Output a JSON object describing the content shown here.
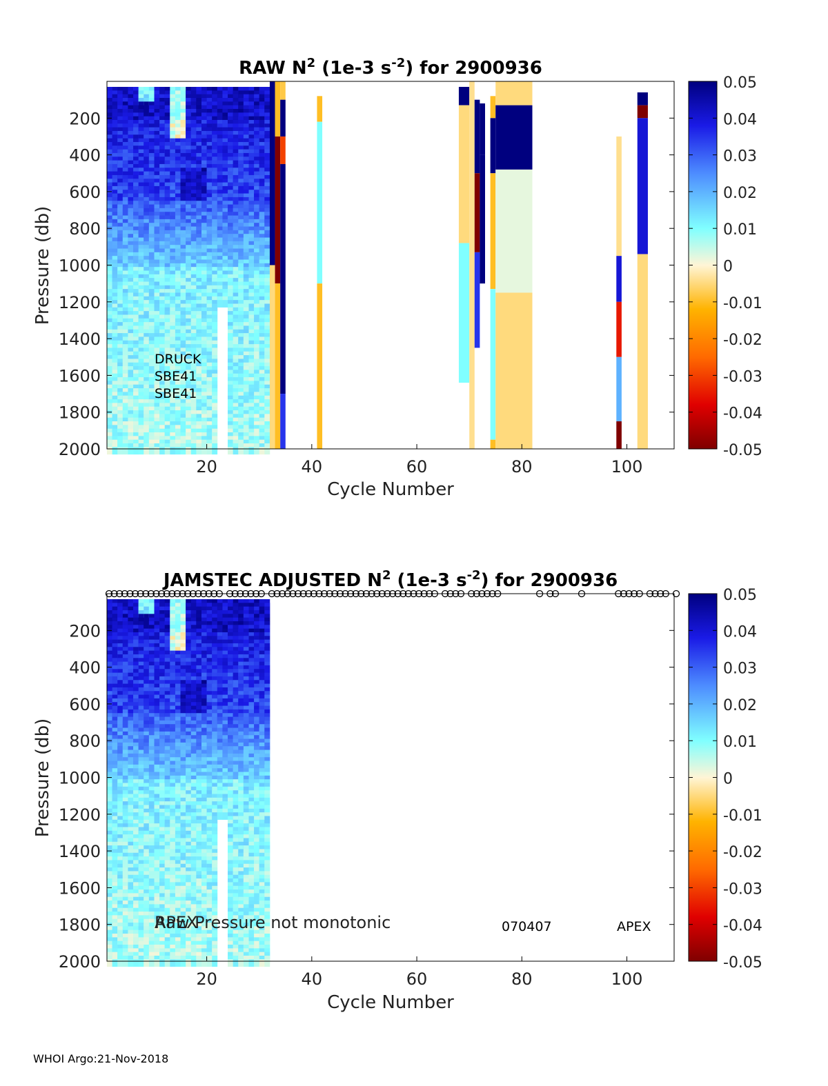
{
  "footer": {
    "label": "WHOI Argo:21-Nov-2018"
  },
  "colorbar": {
    "ticks": [
      "0.05",
      "0.04",
      "0.03",
      "0.02",
      "0.01",
      "0",
      "-0.01",
      "-0.02",
      "-0.03",
      "-0.04",
      "-0.05"
    ],
    "range": [
      -0.05,
      0.05
    ]
  },
  "chart_data": [
    {
      "type": "heatmap",
      "title_main": "RAW N",
      "title_sup": "2",
      "title_mid": " (1e-3 s",
      "title_sup2": "-2",
      "title_end": ") for 2900936",
      "xlabel": "Cycle Number",
      "ylabel": "Pressure (db)",
      "xlim": [
        1,
        109
      ],
      "ylim": [
        2000,
        0
      ],
      "xticks": [
        "20",
        "40",
        "60",
        "80",
        "100"
      ],
      "yticks": [
        "200",
        "400",
        "600",
        "800",
        "1000",
        "1200",
        "1400",
        "1600",
        "1800",
        "2000"
      ],
      "clim": [
        -0.05,
        0.05
      ],
      "annotations": [
        "DRUCK",
        "SBE41",
        "SBE41"
      ],
      "dense_region_cycles": [
        1,
        31
      ],
      "sparse_columns": [
        {
          "x0": 32,
          "x1": 33,
          "bands": [
            [
              0,
              1000,
              0.05
            ],
            [
              1000,
              2000,
              -0.005
            ]
          ]
        },
        {
          "x0": 33,
          "x1": 34,
          "bands": [
            [
              0,
              300,
              -0.01
            ],
            [
              300,
              1100,
              -0.05
            ],
            [
              1100,
              2000,
              -0.01
            ]
          ]
        },
        {
          "x0": 34,
          "x1": 35,
          "bands": [
            [
              0,
              100,
              -0.008
            ],
            [
              100,
              300,
              0.05
            ],
            [
              300,
              450,
              -0.03
            ],
            [
              450,
              1700,
              0.05
            ],
            [
              1700,
              2000,
              0.035
            ]
          ]
        },
        {
          "x0": 41,
          "x1": 42,
          "bands": [
            [
              80,
              220,
              -0.01
            ],
            [
              220,
              1100,
              0.01
            ],
            [
              1100,
              2000,
              -0.01
            ]
          ]
        },
        {
          "x0": 68,
          "x1": 70,
          "bands": [
            [
              30,
              130,
              0.05
            ],
            [
              130,
              880,
              -0.005
            ],
            [
              880,
              1640,
              0.01
            ]
          ]
        },
        {
          "x0": 70,
          "x1": 71,
          "bands": [
            [
              0,
              2000,
              -0.004
            ]
          ]
        },
        {
          "x0": 71,
          "x1": 72,
          "bands": [
            [
              100,
              500,
              0.05
            ],
            [
              500,
              930,
              -0.05
            ],
            [
              930,
              1450,
              0.035
            ]
          ]
        },
        {
          "x0": 72,
          "x1": 73,
          "bands": [
            [
              120,
              400,
              0.05
            ],
            [
              400,
              1100,
              0.05
            ]
          ]
        },
        {
          "x0": 74,
          "x1": 75,
          "bands": [
            [
              80,
              200,
              -0.01
            ],
            [
              200,
              500,
              0.05
            ],
            [
              500,
              1130,
              -0.01
            ],
            [
              1130,
              1950,
              0.01
            ],
            [
              1950,
              2000,
              -0.01
            ]
          ]
        },
        {
          "x0": 75,
          "x1": 82,
          "bands": [
            [
              0,
              130,
              -0.005
            ],
            [
              130,
              480,
              0.05
            ],
            [
              480,
              1150,
              0.002
            ],
            [
              1150,
              2000,
              -0.005
            ]
          ]
        },
        {
          "x0": 98,
          "x1": 99,
          "bands": [
            [
              300,
              950,
              -0.004
            ],
            [
              950,
              1200,
              0.04
            ],
            [
              1200,
              1500,
              -0.035
            ],
            [
              1500,
              1850,
              0.02
            ],
            [
              1850,
              2000,
              -0.05
            ]
          ]
        },
        {
          "x0": 102,
          "x1": 104,
          "bands": [
            [
              60,
              130,
              0.05
            ],
            [
              130,
              200,
              -0.05
            ],
            [
              200,
              940,
              0.04
            ],
            [
              940,
              2000,
              -0.005
            ]
          ]
        }
      ]
    },
    {
      "type": "heatmap",
      "title_main": "JAMSTEC  ADJUSTED N",
      "title_sup": "2",
      "title_mid": " (1e-3 s",
      "title_sup2": "-2",
      "title_end": ") for 2900936",
      "xlabel": "Cycle Number",
      "ylabel": "Pressure (db)",
      "xlim": [
        1,
        109
      ],
      "ylim": [
        2000,
        0
      ],
      "xticks": [
        "20",
        "40",
        "60",
        "80",
        "100"
      ],
      "yticks": [
        "200",
        "400",
        "600",
        "800",
        "1000",
        "1200",
        "1400",
        "1600",
        "1800",
        "2000"
      ],
      "clim": [
        -0.05,
        0.05
      ],
      "dense_region_cycles": [
        1,
        31
      ],
      "marker_cycles": [
        1,
        2,
        3,
        4,
        5,
        6,
        7,
        8,
        9,
        10,
        11,
        12,
        13,
        14,
        15,
        16,
        17,
        18,
        19,
        20,
        21,
        22,
        24,
        25,
        26,
        27,
        28,
        29,
        30,
        32,
        33,
        34,
        35,
        36,
        37,
        38,
        39,
        40,
        41,
        42,
        43,
        44,
        45,
        46,
        47,
        48,
        49,
        50,
        51,
        52,
        53,
        54,
        55,
        56,
        57,
        58,
        59,
        60,
        61,
        62,
        63,
        65,
        66,
        67,
        68,
        70,
        71,
        72,
        73,
        74,
        75,
        83,
        85,
        86,
        91,
        98,
        99,
        100,
        101,
        102,
        104,
        105,
        106,
        107,
        109
      ],
      "annotations": {
        "overlap_left": "APEX",
        "overlap_right": "Raw Pressure not monotonic",
        "code": "070407",
        "model": "APEX"
      }
    }
  ]
}
